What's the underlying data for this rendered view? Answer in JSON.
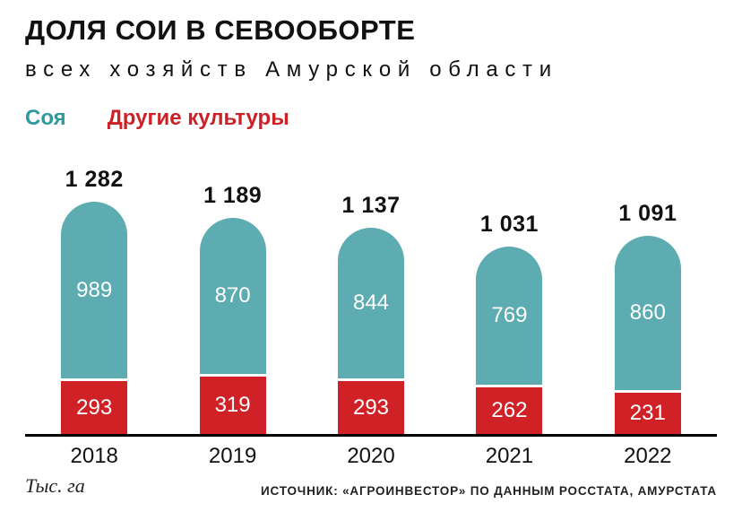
{
  "title": "ДОЛЯ СОИ В СЕВООБОРТЕ",
  "subtitle": "всех хозяйств Амурской области",
  "legend": {
    "items": [
      {
        "label": "Соя",
        "color": "#2d9aa0"
      },
      {
        "label": "Другие культуры",
        "color": "#cc2127"
      }
    ]
  },
  "footer": {
    "units": "Тыс. га",
    "source": "ИСТОЧНИК: «АГРОИНВЕСТОР» ПО ДАННЫМ РОССТАТА, АМУРСТАТА"
  },
  "chart_data": {
    "type": "bar",
    "stacked": true,
    "title": "ДОЛЯ СОИ В СЕВООБОРТЕ",
    "subtitle": "всех хозяйств Амурской области",
    "categories": [
      "2018",
      "2019",
      "2020",
      "2021",
      "2022"
    ],
    "series": [
      {
        "name": "Соя",
        "color": "#5cacb1",
        "values": [
          989,
          870,
          844,
          769,
          860
        ]
      },
      {
        "name": "Другие культуры",
        "color": "#d02127",
        "values": [
          293,
          319,
          293,
          262,
          231
        ]
      }
    ],
    "totals": [
      1282,
      1189,
      1137,
      1031,
      1091
    ],
    "totals_display": [
      "1 282",
      "1 189",
      "1 137",
      "1 031",
      "1 091"
    ],
    "ylabel": "Тыс. га",
    "legend_position": "top",
    "grid": false,
    "units": "тыс. га"
  }
}
